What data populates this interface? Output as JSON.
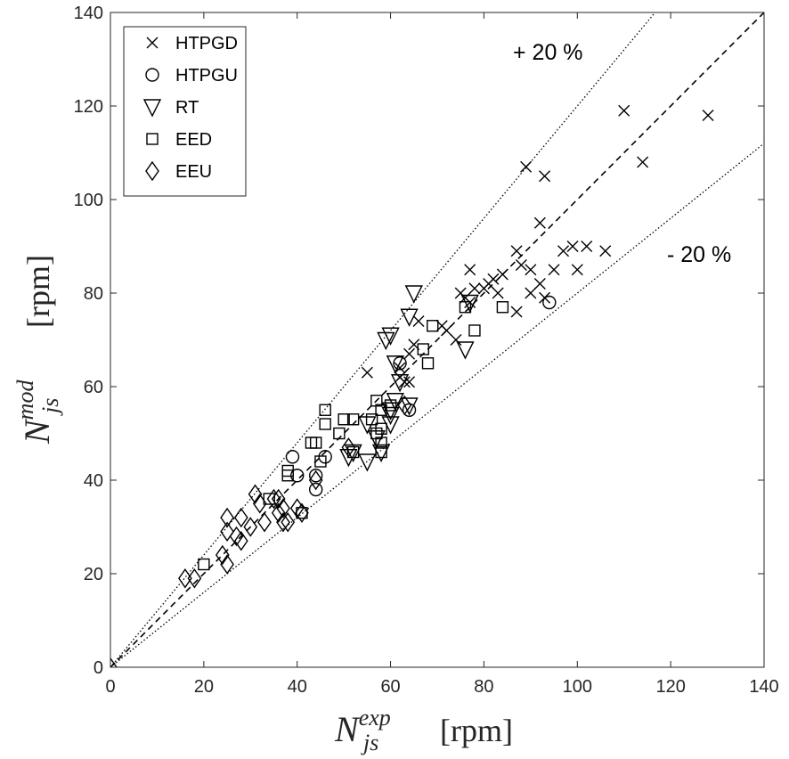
{
  "chart_data": {
    "type": "scatter",
    "xlim": [
      0,
      140
    ],
    "ylim": [
      0,
      140
    ],
    "xticks": [
      0,
      20,
      40,
      60,
      80,
      100,
      120,
      140
    ],
    "yticks": [
      0,
      20,
      40,
      60,
      80,
      100,
      120,
      140
    ],
    "xlabel": {
      "main": "N",
      "sub": "js",
      "sup": "exp",
      "unit": "[rpm]"
    },
    "ylabel": {
      "main": "N",
      "sub": "js",
      "sup": "mod",
      "unit": "[rpm]"
    },
    "grid": false,
    "legend_position": "top-left",
    "reference_lines": [
      {
        "label": "",
        "slope": 1.0,
        "style": "dashed"
      },
      {
        "label": "+ 20 %",
        "slope": 1.2,
        "style": "dotted"
      },
      {
        "label": "- 20 %",
        "slope": 0.8,
        "style": "dotted"
      }
    ],
    "series": [
      {
        "name": "HTPGD",
        "marker": "x",
        "points": [
          [
            89,
            107
          ],
          [
            93,
            105
          ],
          [
            110,
            119
          ],
          [
            128,
            118
          ],
          [
            114,
            108
          ],
          [
            92,
            95
          ],
          [
            87,
            89
          ],
          [
            88,
            86
          ],
          [
            90,
            85
          ],
          [
            95,
            85
          ],
          [
            97,
            89
          ],
          [
            99,
            90
          ],
          [
            102,
            90
          ],
          [
            106,
            89
          ],
          [
            100,
            85
          ],
          [
            87,
            76
          ],
          [
            90,
            80
          ],
          [
            92,
            82
          ],
          [
            93,
            79
          ],
          [
            82,
            83
          ],
          [
            83,
            80
          ],
          [
            81,
            82
          ],
          [
            80,
            81
          ],
          [
            84,
            84
          ],
          [
            77,
            85
          ],
          [
            78,
            81
          ],
          [
            76,
            79
          ],
          [
            77,
            78
          ],
          [
            75,
            80
          ],
          [
            74,
            70
          ],
          [
            72,
            72
          ],
          [
            71,
            73
          ],
          [
            66,
            74
          ],
          [
            65,
            69
          ],
          [
            64,
            67
          ],
          [
            62,
            62
          ],
          [
            63,
            61
          ],
          [
            64,
            61
          ],
          [
            62,
            64
          ],
          [
            55,
            63
          ]
        ]
      },
      {
        "name": "HTPGU",
        "marker": "circle",
        "points": [
          [
            94,
            78
          ],
          [
            39,
            45
          ],
          [
            40,
            41
          ],
          [
            44,
            41
          ],
          [
            44,
            38
          ],
          [
            46,
            45
          ],
          [
            62,
            65
          ],
          [
            64,
            55
          ]
        ]
      },
      {
        "name": "RT",
        "marker": "triangle-down",
        "points": [
          [
            65,
            80
          ],
          [
            64,
            75
          ],
          [
            60,
            71
          ],
          [
            59,
            70
          ],
          [
            61,
            65
          ],
          [
            62,
            61
          ],
          [
            61,
            57
          ],
          [
            64,
            56
          ],
          [
            60,
            54
          ],
          [
            60,
            52
          ],
          [
            57,
            49
          ],
          [
            58,
            46
          ],
          [
            55,
            44
          ],
          [
            55,
            52
          ],
          [
            52,
            46
          ],
          [
            51,
            45
          ],
          [
            76,
            68
          ],
          [
            77,
            78
          ],
          [
            60,
            55
          ]
        ]
      },
      {
        "name": "EED",
        "marker": "square",
        "points": [
          [
            69,
            73
          ],
          [
            67,
            68
          ],
          [
            68,
            65
          ],
          [
            78,
            72
          ],
          [
            84,
            77
          ],
          [
            76,
            77
          ],
          [
            46,
            55
          ],
          [
            46,
            52
          ],
          [
            43,
            48
          ],
          [
            44,
            48
          ],
          [
            38,
            42
          ],
          [
            38,
            41
          ],
          [
            45,
            44
          ],
          [
            49,
            50
          ],
          [
            50,
            53
          ],
          [
            52,
            53
          ],
          [
            56,
            53
          ],
          [
            57,
            57
          ],
          [
            58,
            55
          ],
          [
            58,
            51
          ],
          [
            58,
            48
          ],
          [
            57,
            50
          ],
          [
            60,
            56
          ],
          [
            58,
            46
          ],
          [
            41,
            33
          ],
          [
            34,
            36
          ],
          [
            20,
            22
          ],
          [
            52,
            46
          ]
        ]
      },
      {
        "name": "EEU",
        "marker": "diamond",
        "points": [
          [
            0,
            0
          ],
          [
            16,
            19
          ],
          [
            18,
            19
          ],
          [
            24,
            24
          ],
          [
            25,
            22
          ],
          [
            25,
            29
          ],
          [
            25,
            32
          ],
          [
            27,
            28
          ],
          [
            28,
            32
          ],
          [
            28,
            27
          ],
          [
            30,
            30
          ],
          [
            31,
            37
          ],
          [
            32,
            35
          ],
          [
            33,
            31
          ],
          [
            35,
            36
          ],
          [
            36,
            36
          ],
          [
            37,
            34
          ],
          [
            37,
            31
          ],
          [
            38,
            31
          ],
          [
            36,
            33
          ],
          [
            40,
            34
          ],
          [
            41,
            33
          ],
          [
            44,
            40
          ],
          [
            51,
            47
          ],
          [
            63,
            56
          ]
        ]
      }
    ]
  }
}
